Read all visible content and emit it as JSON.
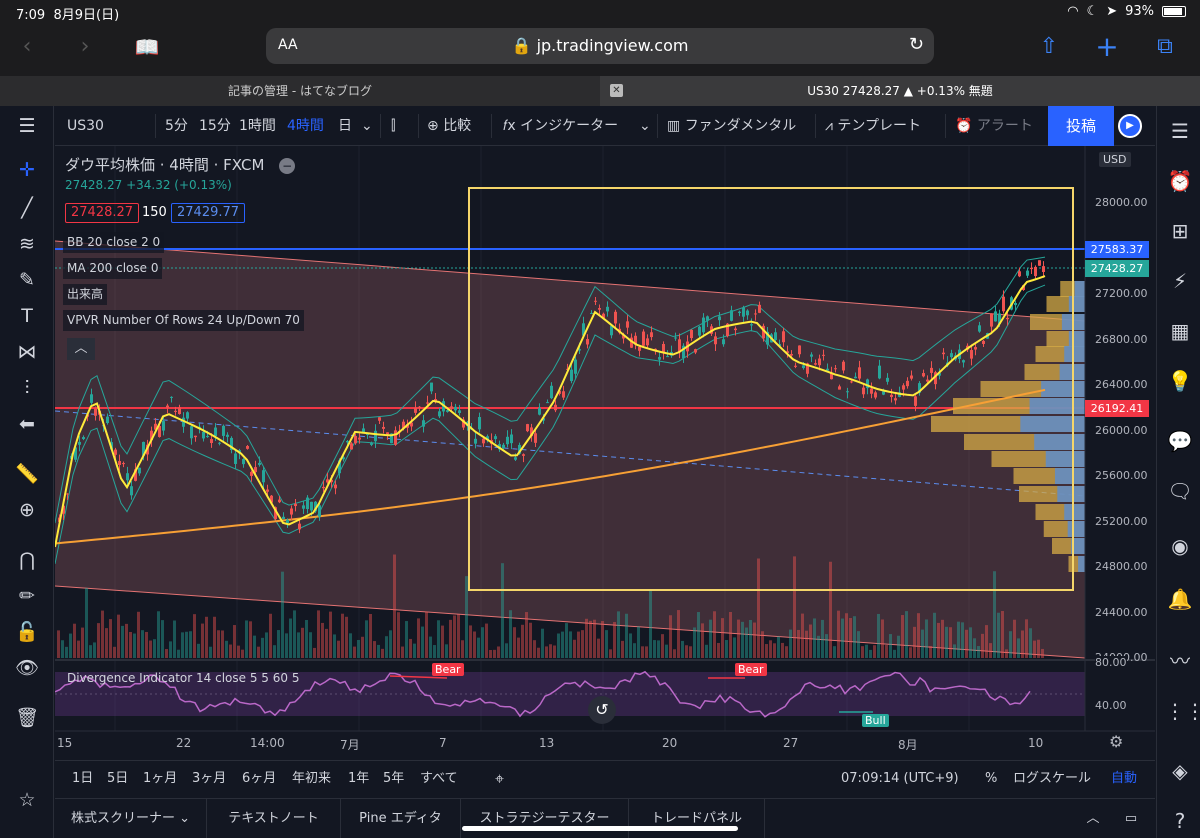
{
  "status": {
    "time": "7:09",
    "date": "8月9日(日)",
    "battery": "93%"
  },
  "safari": {
    "aa": "AA",
    "url": "jp.tradingview.com"
  },
  "tabs": [
    {
      "label": "記事の管理 - はてなブログ"
    },
    {
      "label": "US30 27428.27 ▲ +0.13% 無題"
    }
  ],
  "toolbar": {
    "symbol": "US30",
    "intervals": [
      "5分",
      "15分",
      "1時間",
      "4時間",
      "日"
    ],
    "active_interval": "4時間",
    "compare": "比較",
    "indicators": "インジケーター",
    "fundamentals": "ファンダメンタル",
    "templates": "テンプレート",
    "alert": "アラート",
    "post": "投稿"
  },
  "legend": {
    "title": "ダウ平均株価 · 4時間 · FXCM",
    "change": "27428.27 +34.32 (+0.13%)",
    "bid": "27428.27",
    "spread": "150",
    "ask": "27429.77",
    "indicators": [
      "BB 20 close 2 0",
      "MA 200 close 0",
      "出来高",
      "VPVR Number Of Rows 24 Up/Down 70"
    ],
    "oscillator": "Divergence Indicator 14 close 5 5 60 5"
  },
  "price_axis": {
    "currency": "USD",
    "labels": [
      "28000.00",
      "27200.00",
      "26800.00",
      "26400.00",
      "26000.00",
      "25600.00",
      "25200.00",
      "24800.00",
      "24400.00",
      "24000.00"
    ],
    "osc_labels": [
      "80.00",
      "40.00"
    ],
    "tags": [
      {
        "value": "27583.37",
        "color": "#2962ff"
      },
      {
        "value": "27428.27",
        "color": "#26a69a"
      },
      {
        "value": "26192.41",
        "color": "#f23645"
      }
    ]
  },
  "time_axis": [
    "15",
    "22",
    "14:00",
    "7月",
    "7",
    "13",
    "20",
    "27",
    "8月",
    "10"
  ],
  "osc_labels": {
    "bear": "Bear",
    "bull": "Bull"
  },
  "bottom": {
    "ranges": [
      "1日",
      "5日",
      "1ヶ月",
      "3ヶ月",
      "6ヶ月",
      "年初来",
      "1年",
      "5年",
      "すべて"
    ],
    "clock": "07:09:14 (UTC+9)",
    "percent": "%",
    "log": "ログスケール",
    "auto": "自動"
  },
  "panels": [
    "株式スクリーナー",
    "テキストノート",
    "Pine エディタ",
    "ストラテジーテスター",
    "トレードパネル"
  ],
  "colors": {
    "accent": "#2962ff",
    "up": "#26a69a",
    "down": "#ef5350",
    "ma": "#ffeb3b",
    "ma200": "#f7a035",
    "rect": "#f5d66a"
  }
}
